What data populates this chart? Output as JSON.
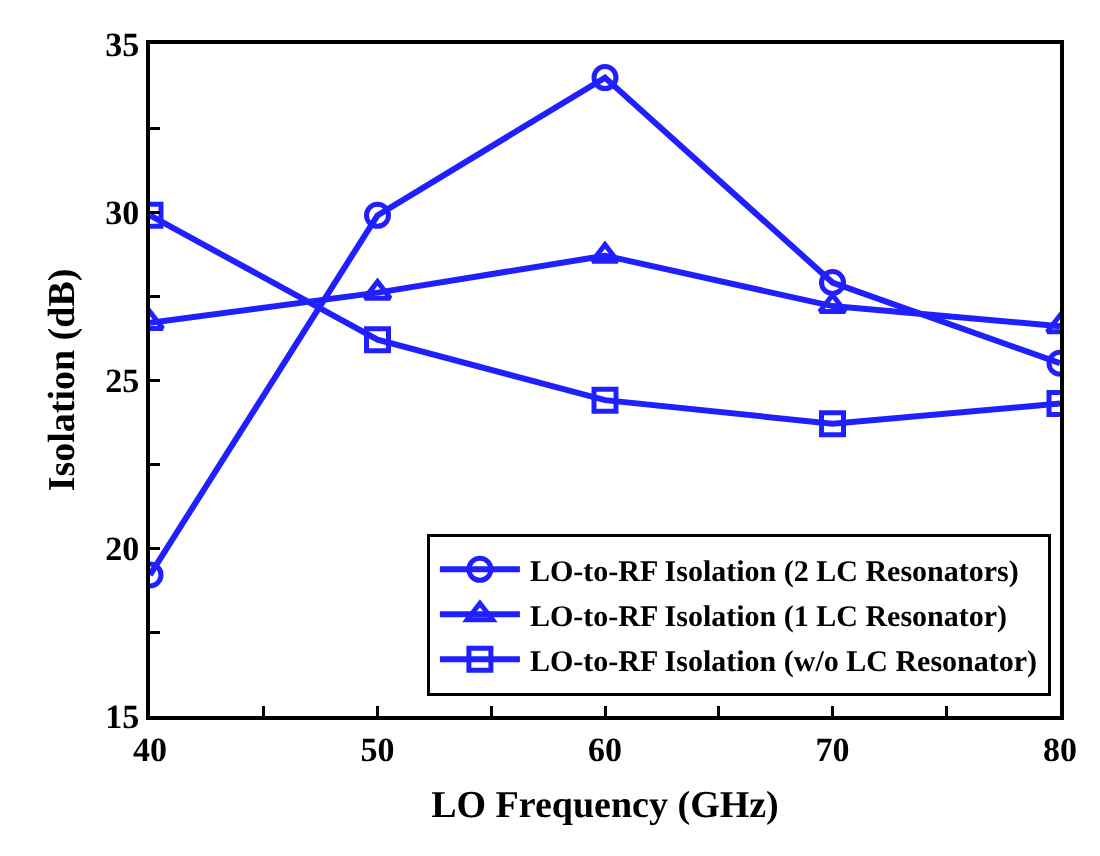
{
  "chart_data": {
    "type": "line",
    "xlabel": "LO Frequency (GHz)",
    "ylabel": "Isolation (dB)",
    "x": [
      40,
      50,
      60,
      70,
      80
    ],
    "series": [
      {
        "name": "LO-to-RF Isolation (2 LC Resonators)",
        "color": "#2020ff",
        "marker": "circle",
        "values": [
          19.2,
          29.9,
          34.0,
          27.9,
          25.5
        ]
      },
      {
        "name": "LO-to-RF Isolation (1 LC Resonator)",
        "color": "#2020ff",
        "marker": "triangle",
        "values": [
          26.7,
          27.6,
          28.7,
          27.2,
          26.6
        ]
      },
      {
        "name": "LO-to-RF Isolation (w/o LC Resonator)",
        "color": "#2020ff",
        "marker": "square",
        "values": [
          29.9,
          26.2,
          24.4,
          23.7,
          24.3
        ]
      }
    ],
    "xlim": [
      40,
      80
    ],
    "xticks": [
      40,
      {
        "value": 45,
        "label": null
      },
      50,
      {
        "value": 55,
        "label": null
      },
      60,
      {
        "value": 65,
        "label": null
      },
      70,
      {
        "value": 75,
        "label": null
      },
      80
    ],
    "ylim": [
      15,
      35
    ],
    "yticks": [
      15,
      {
        "value": 17.5,
        "label": null
      },
      20,
      {
        "value": 22.5,
        "label": null
      },
      25,
      {
        "value": 27.5,
        "label": null
      },
      30,
      {
        "value": 32.5,
        "label": null
      },
      35
    ],
    "grid": false,
    "legend": "bottom right",
    "line_style": "solid"
  }
}
